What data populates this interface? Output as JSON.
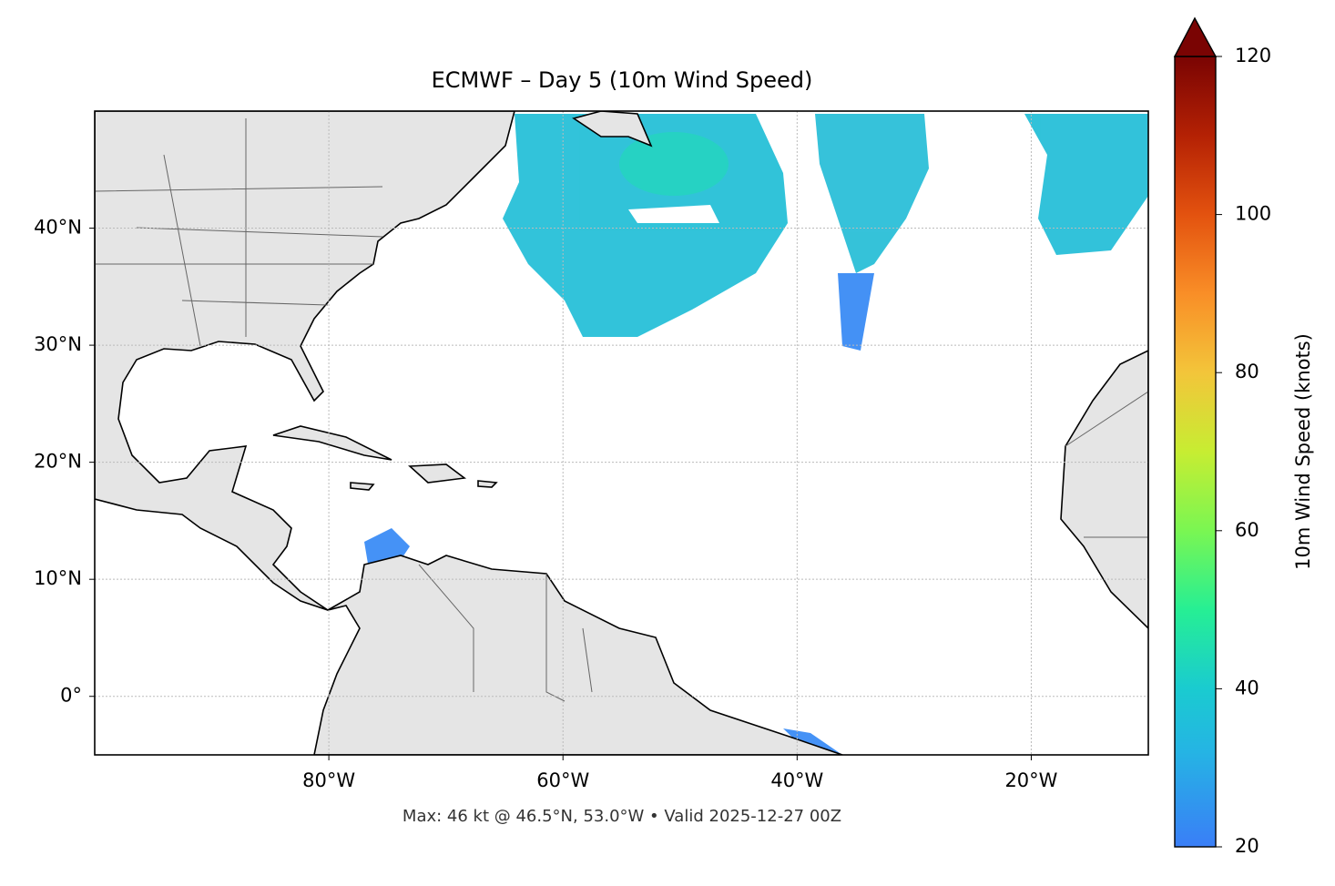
{
  "map": {
    "title": "ECMWF – Day 5 (10m Wind Speed)",
    "xlim": [
      -100,
      -10
    ],
    "ylim": [
      -5,
      50
    ],
    "xticks": [
      {
        "value": -80,
        "label": "80°W"
      },
      {
        "value": -60,
        "label": "60°W"
      },
      {
        "value": -40,
        "label": "40°W"
      },
      {
        "value": -20,
        "label": "20°W"
      }
    ],
    "yticks": [
      {
        "value": 0,
        "label": "0°"
      },
      {
        "value": 10,
        "label": "10°N"
      },
      {
        "value": 20,
        "label": "20°N"
      },
      {
        "value": 30,
        "label": "30°N"
      },
      {
        "value": 40,
        "label": "40°N"
      }
    ],
    "grid": true,
    "colorbar": {
      "label": "10m Wind Speed (knots)",
      "lim": [
        20,
        120
      ],
      "ticks": [
        20,
        40,
        60,
        80,
        100,
        120
      ]
    },
    "footer": "Max: 46 kt @ 46.5°N, 53.0°W • Valid 2025-12-27 00Z"
  }
}
